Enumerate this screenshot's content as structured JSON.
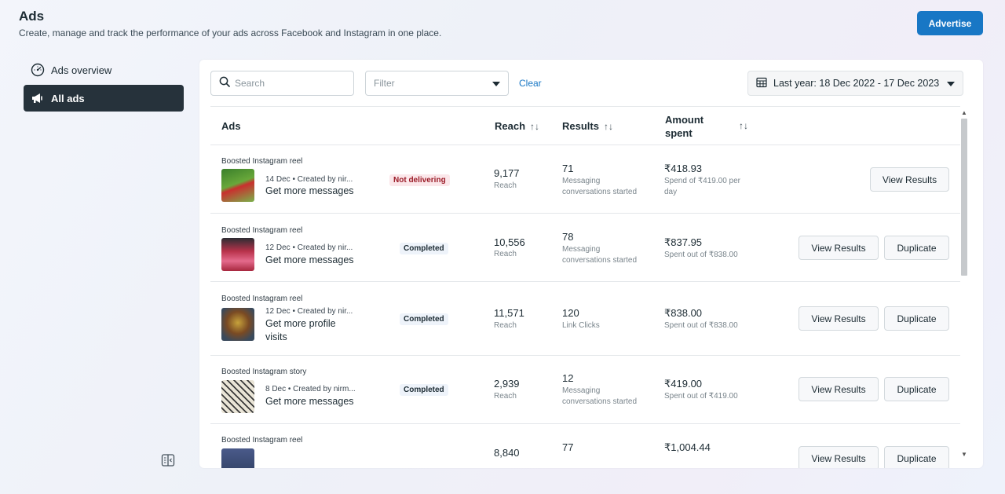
{
  "page": {
    "title": "Ads",
    "subtitle": "Create, manage and track the performance of your ads across Facebook and Instagram in one place.",
    "advertise_label": "Advertise"
  },
  "sidebar": {
    "items": [
      {
        "label": "Ads overview",
        "icon": "gauge-icon",
        "active": false
      },
      {
        "label": "All ads",
        "icon": "megaphone-icon",
        "active": true
      }
    ]
  },
  "toolbar": {
    "search_placeholder": "Search",
    "filter_placeholder": "Filter",
    "clear_label": "Clear",
    "date_range": "Last year: 18 Dec 2022 - 17 Dec 2023"
  },
  "table": {
    "headers": {
      "ads": "Ads",
      "reach": "Reach",
      "results": "Results",
      "amount_line1": "Amount",
      "amount_line2": "spent",
      "sort_glyph": "↑↓"
    },
    "rows": [
      {
        "type": "Boosted Instagram reel",
        "meta": "14 Dec • Created by nir...",
        "objective": "Get more messages",
        "status": "Not delivering",
        "reach": "9,177",
        "reach_sub": "Reach",
        "results": "71",
        "results_sub": "Messaging conversations started",
        "amount": "₹418.93",
        "amount_sub": "Spend of ₹419.00 per day",
        "view_label": "View Results",
        "duplicate_label": ""
      },
      {
        "type": "Boosted Instagram reel",
        "meta": "12 Dec • Created by nir...",
        "objective": "Get more messages",
        "status": "Completed",
        "reach": "10,556",
        "reach_sub": "Reach",
        "results": "78",
        "results_sub": "Messaging conversations started",
        "amount": "₹837.95",
        "amount_sub": "Spent out of ₹838.00",
        "view_label": "View Results",
        "duplicate_label": "Duplicate"
      },
      {
        "type": "Boosted Instagram reel",
        "meta": "12 Dec • Created by nir...",
        "objective": "Get more profile visits",
        "status": "Completed",
        "reach": "11,571",
        "reach_sub": "Reach",
        "results": "120",
        "results_sub": "Link Clicks",
        "amount": "₹838.00",
        "amount_sub": "Spent out of ₹838.00",
        "view_label": "View Results",
        "duplicate_label": "Duplicate"
      },
      {
        "type": "Boosted Instagram story",
        "meta": "8 Dec • Created by nirm...",
        "objective": "Get more messages",
        "status": "Completed",
        "reach": "2,939",
        "reach_sub": "Reach",
        "results": "12",
        "results_sub": "Messaging conversations started",
        "amount": "₹419.00",
        "amount_sub": "Spent out of ₹419.00",
        "view_label": "View Results",
        "duplicate_label": "Duplicate"
      },
      {
        "type": "Boosted Instagram reel",
        "meta": "",
        "objective": "",
        "status": "",
        "reach": "8,840",
        "reach_sub": "",
        "results": "77",
        "results_sub": "",
        "amount": "₹1,004.44",
        "amount_sub": "",
        "view_label": "View Results",
        "duplicate_label": "Duplicate"
      }
    ]
  },
  "colors": {
    "accent": "#1877c5",
    "sidebar_active": "#26323b",
    "badge_bad_bg": "#fbe7ea",
    "badge_bad_text": "#9b1c28"
  }
}
